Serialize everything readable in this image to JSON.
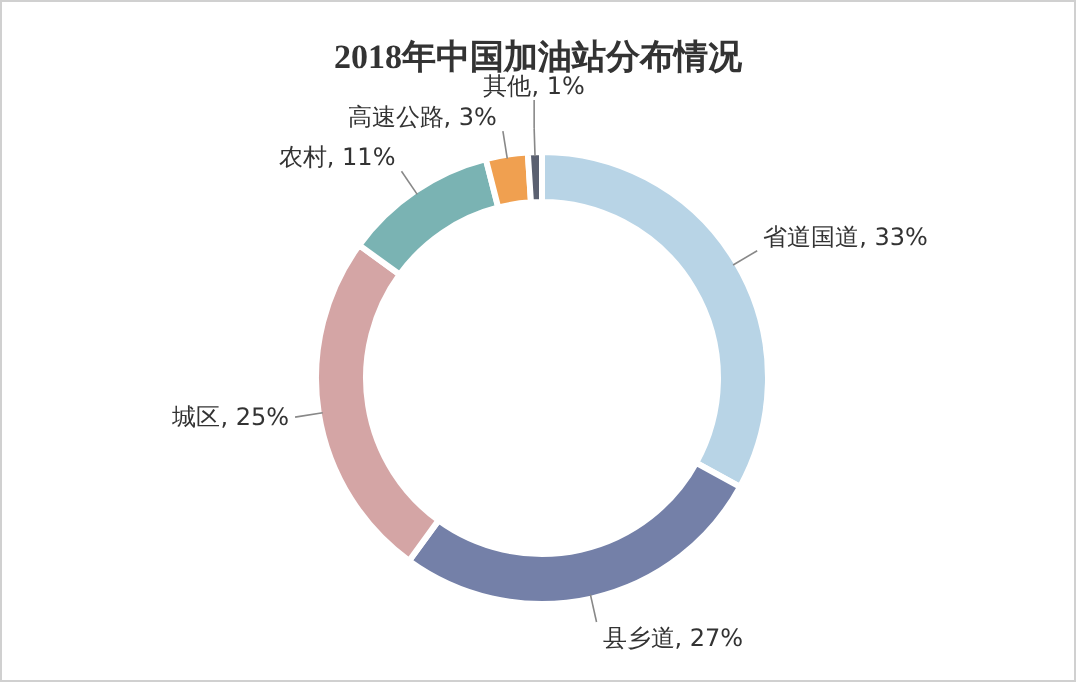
{
  "chart_data": {
    "type": "donut",
    "title": "2018年中国加油站分布情况",
    "categories": [
      "省道国道",
      "县乡道",
      "城区",
      "农村",
      "高速公路",
      "其他"
    ],
    "values": [
      33,
      27,
      25,
      11,
      3,
      1
    ],
    "value_labels": [
      ", 33%",
      ", 27%",
      ", 25%",
      ", 11%",
      ", 3%",
      ", 1%"
    ],
    "colors": [
      "#b8d4e6",
      "#7480a8",
      "#d4a5a5",
      "#7ab3b3",
      "#f0a050",
      "#5a6070"
    ]
  }
}
